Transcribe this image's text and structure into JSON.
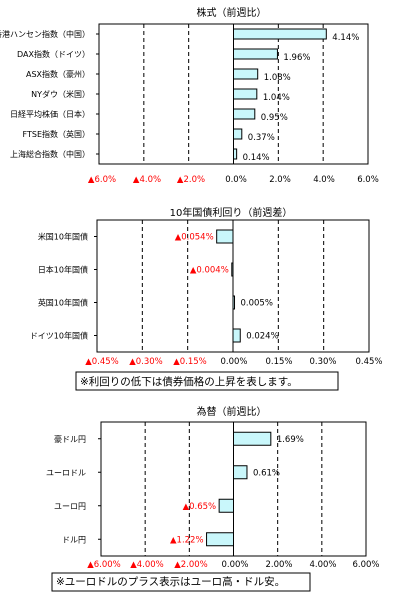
{
  "chart_data": [
    {
      "type": "bar",
      "title": "株式（前週比）",
      "categories": [
        "香港ハンセン指数（中国）",
        "DAX指数（ドイツ）",
        "ASX指数（豪州）",
        "NYダウ（米国）",
        "日経平均株価（日本）",
        "FTSE指数（英国）",
        "上海総合指数（中国）"
      ],
      "values": [
        4.14,
        1.96,
        1.08,
        1.04,
        0.95,
        0.37,
        0.14
      ],
      "value_labels": [
        "4.14%",
        "1.96%",
        "1.08%",
        "1.04%",
        "0.95%",
        "0.37%",
        "0.14%"
      ],
      "xlim": [
        -6.0,
        6.0
      ],
      "ticks": [
        -6,
        -4,
        -2,
        0,
        2,
        4,
        6
      ],
      "tick_labels": [
        "▲6.0%",
        "▲4.0%",
        "▲2.0%",
        "0.0%",
        "2.0%",
        "4.0%",
        "6.0%"
      ],
      "orientation": "horizontal",
      "bar_color": "#c9f7fb",
      "negative_label_color": "#ff0000",
      "note": ""
    },
    {
      "type": "bar",
      "title": "10年国債利回り（前週差）",
      "categories": [
        "米国10年国債",
        "日本10年国債",
        "英国10年国債",
        "ドイツ10年国債"
      ],
      "values": [
        -0.054,
        -0.004,
        0.005,
        0.024
      ],
      "value_labels": [
        "▲0.054%",
        "▲0.004%",
        "0.005%",
        "0.024%"
      ],
      "xlim": [
        -0.45,
        0.45
      ],
      "ticks": [
        -0.45,
        -0.3,
        -0.15,
        0,
        0.15,
        0.3,
        0.45
      ],
      "tick_labels": [
        "▲0.45%",
        "▲0.30%",
        "▲0.15%",
        "0.00%",
        "0.15%",
        "0.30%",
        "0.45%"
      ],
      "orientation": "horizontal",
      "bar_color": "#c9f7fb",
      "negative_label_color": "#ff0000",
      "note": "※利回りの低下は債券価格の上昇を表します。"
    },
    {
      "type": "bar",
      "title": "為替（前週比）",
      "categories": [
        "豪ドル円",
        "ユーロドル",
        "ユーロ円",
        "ドル円"
      ],
      "values": [
        1.69,
        0.61,
        -0.65,
        -1.22
      ],
      "value_labels": [
        "1.69%",
        "0.61%",
        "▲0.65%",
        "▲1.22%"
      ],
      "xlim": [
        -6.0,
        6.0
      ],
      "ticks": [
        -6,
        -4,
        -2,
        0,
        2,
        4,
        6
      ],
      "tick_labels": [
        "▲6.00%",
        "▲4.00%",
        "▲2.00%",
        "0.00%",
        "2.00%",
        "4.00%",
        "6.00%"
      ],
      "orientation": "horizontal",
      "bar_color": "#c9f7fb",
      "negative_label_color": "#ff0000",
      "note": "※ユーロドルのプラス表示はユーロ高・ドル安。"
    }
  ]
}
